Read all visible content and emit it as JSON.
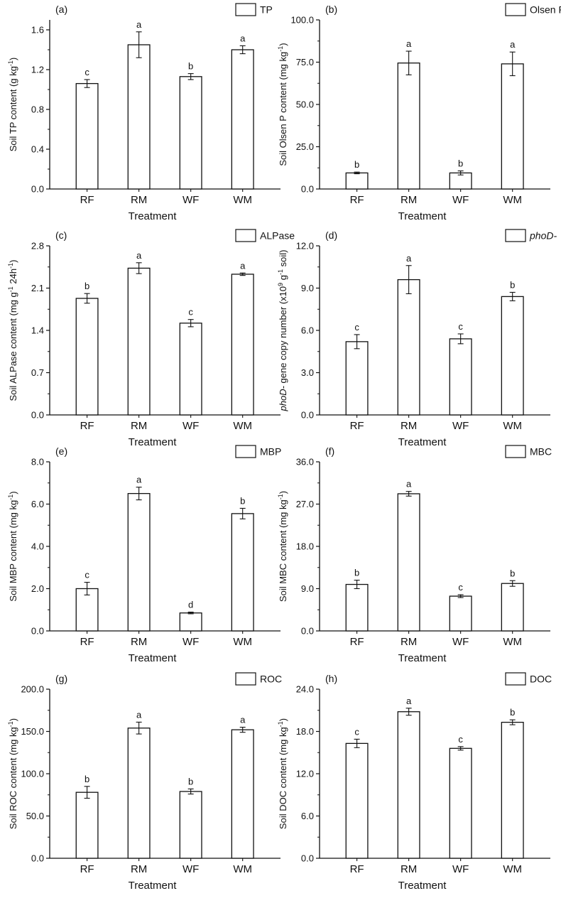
{
  "chart_data": [
    {
      "type": "bar",
      "panel_label": "(a)",
      "legend_label": "TP",
      "legend_italic": false,
      "ylabel": {
        "before": "Soil TP content (g kg",
        "sup": "-1",
        "after": ")"
      },
      "xlabel": "Treatment",
      "categories": [
        "RF",
        "RM",
        "WF",
        "WM"
      ],
      "values": [
        1.06,
        1.45,
        1.13,
        1.4
      ],
      "errors": [
        0.04,
        0.13,
        0.03,
        0.04
      ],
      "letters": [
        "c",
        "a",
        "b",
        "a"
      ],
      "ylim": [
        0,
        1.7
      ],
      "yticks": [
        0.0,
        0.4,
        0.8,
        1.2,
        1.6
      ],
      "ytick_labels": [
        "0.0",
        "0.4",
        "0.8",
        "1.2",
        "1.6"
      ]
    },
    {
      "type": "bar",
      "panel_label": "(b)",
      "legend_label": "Olsen P",
      "legend_italic": false,
      "ylabel": {
        "before": "Soil Olsen P content (mg kg",
        "sup": "-1",
        "after": ")"
      },
      "xlabel": "Treatment",
      "categories": [
        "RF",
        "RM",
        "WF",
        "WM"
      ],
      "values": [
        9.5,
        74.5,
        9.5,
        74.0
      ],
      "errors": [
        0.5,
        7.0,
        1.2,
        7.0
      ],
      "letters": [
        "b",
        "a",
        "b",
        "a"
      ],
      "ylim": [
        0,
        100
      ],
      "yticks": [
        0,
        25,
        50,
        75,
        100
      ],
      "ytick_labels": [
        "0.0",
        "25.0",
        "50.0",
        "75.0",
        "100.0"
      ]
    },
    {
      "type": "bar",
      "panel_label": "(c)",
      "legend_label": "ALPase",
      "legend_italic": false,
      "ylabel": {
        "before": "Soil ALPase content (mg g",
        "sup": "-1",
        "after": " 24h",
        "sup2": "-1",
        "after2": ")"
      },
      "xlabel": "Treatment",
      "categories": [
        "RF",
        "RM",
        "WF",
        "WM"
      ],
      "values": [
        1.93,
        2.43,
        1.52,
        2.33
      ],
      "errors": [
        0.08,
        0.09,
        0.06,
        0.02
      ],
      "letters": [
        "b",
        "a",
        "c",
        "a"
      ],
      "ylim": [
        0,
        2.8
      ],
      "yticks": [
        0.0,
        0.7,
        1.4,
        2.1,
        2.8
      ],
      "ytick_labels": [
        "0.0",
        "0.7",
        "1.4",
        "2.1",
        "2.8"
      ]
    },
    {
      "type": "bar",
      "panel_label": "(d)",
      "legend_label": "phoD-",
      "legend_italic": true,
      "ylabel": {
        "italic": "phoD-",
        "before": " gene copy number (x10",
        "sup": "9",
        "after": " g",
        "sup2": "-1",
        "after2": " soil)"
      },
      "xlabel": "Treatment",
      "categories": [
        "RF",
        "RM",
        "WF",
        "WM"
      ],
      "values": [
        5.2,
        9.6,
        5.4,
        8.4
      ],
      "errors": [
        0.5,
        1.0,
        0.35,
        0.3
      ],
      "letters": [
        "c",
        "a",
        "c",
        "b"
      ],
      "ylim": [
        0,
        12
      ],
      "yticks": [
        0,
        3,
        6,
        9,
        12
      ],
      "ytick_labels": [
        "0.0",
        "3.0",
        "6.0",
        "9.0",
        "12.0"
      ]
    },
    {
      "type": "bar",
      "panel_label": "(e)",
      "legend_label": "MBP",
      "legend_italic": false,
      "ylabel": {
        "before": "Soil MBP content (mg kg",
        "sup": "-1",
        "after": ")"
      },
      "xlabel": "Treatment",
      "categories": [
        "RF",
        "RM",
        "WF",
        "WM"
      ],
      "values": [
        2.0,
        6.5,
        0.85,
        5.55
      ],
      "errors": [
        0.3,
        0.3,
        0.04,
        0.25
      ],
      "letters": [
        "c",
        "a",
        "d",
        "b"
      ],
      "ylim": [
        0,
        8
      ],
      "yticks": [
        0,
        2,
        4,
        6,
        8
      ],
      "ytick_labels": [
        "0.0",
        "2.0",
        "4.0",
        "6.0",
        "8.0"
      ]
    },
    {
      "type": "bar",
      "panel_label": "(f)",
      "legend_label": "MBC",
      "legend_italic": false,
      "ylabel": {
        "before": "Soil MBC content (mg kg",
        "sup": "-1",
        "after": ")"
      },
      "xlabel": "Treatment",
      "categories": [
        "RF",
        "RM",
        "WF",
        "WM"
      ],
      "values": [
        9.9,
        29.2,
        7.4,
        10.1
      ],
      "errors": [
        0.9,
        0.5,
        0.3,
        0.6
      ],
      "letters": [
        "b",
        "a",
        "c",
        "b"
      ],
      "ylim": [
        0,
        36
      ],
      "yticks": [
        0,
        9,
        18,
        27,
        36
      ],
      "ytick_labels": [
        "0.0",
        "9.0",
        "18.0",
        "27.0",
        "36.0"
      ]
    },
    {
      "type": "bar",
      "panel_label": "(g)",
      "legend_label": "ROC",
      "legend_italic": false,
      "ylabel": {
        "before": "Soil ROC content (mg kg",
        "sup": "-1",
        "after": ")"
      },
      "xlabel": "Treatment",
      "categories": [
        "RF",
        "RM",
        "WF",
        "WM"
      ],
      "values": [
        78,
        154,
        79,
        152
      ],
      "errors": [
        7,
        7,
        3,
        3
      ],
      "letters": [
        "b",
        "a",
        "b",
        "a"
      ],
      "ylim": [
        0,
        200
      ],
      "yticks": [
        0,
        50,
        100,
        150,
        200
      ],
      "ytick_labels": [
        "0.0",
        "50.0",
        "100.0",
        "150.0",
        "200.0"
      ]
    },
    {
      "type": "bar",
      "panel_label": "(h)",
      "legend_label": "DOC",
      "legend_italic": false,
      "ylabel": {
        "before": "Soil DOC content (mg kg",
        "sup": "-1",
        "after": ")"
      },
      "xlabel": "Treatment",
      "categories": [
        "RF",
        "RM",
        "WF",
        "WM"
      ],
      "values": [
        16.3,
        20.8,
        15.6,
        19.3
      ],
      "errors": [
        0.6,
        0.5,
        0.25,
        0.35
      ],
      "letters": [
        "c",
        "a",
        "c",
        "b"
      ],
      "ylim": [
        0,
        24
      ],
      "yticks": [
        0,
        6,
        12,
        18,
        24
      ],
      "ytick_labels": [
        "0.0",
        "6.0",
        "12.0",
        "18.0",
        "24.0"
      ]
    }
  ]
}
